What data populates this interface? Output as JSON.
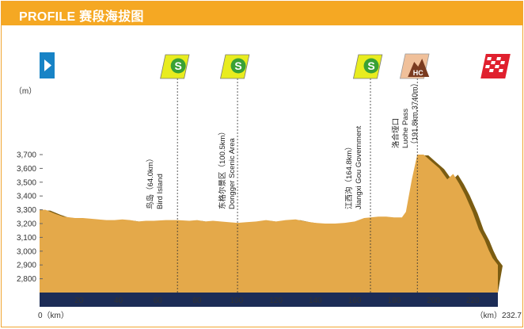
{
  "header": {
    "title": "PROFILE 赛段海拔图"
  },
  "chart_data": {
    "type": "area",
    "title": "PROFILE 赛段海拔图",
    "ylabel": "（m）",
    "x_start_label": "0（km）",
    "x_end_label": "（km）232.7",
    "xlim": [
      0,
      232.7
    ],
    "ylim": [
      2700,
      3800
    ],
    "x_ticks": [
      20,
      40,
      60,
      80,
      100,
      120,
      140,
      160,
      180,
      200,
      220
    ],
    "y_ticks": [
      2800,
      2900,
      3000,
      3100,
      3200,
      3300,
      3400,
      3500,
      3600,
      3700
    ],
    "y_tick_labels": [
      "2,800",
      "2,900",
      "3,000",
      "3,100",
      "3,200",
      "3,300",
      "3,400",
      "3,500",
      "3,600",
      "3,700"
    ],
    "colors": {
      "fill": "#e4a94a",
      "shadow": "#7a5c12",
      "sprint": "#e8ec1f",
      "start": "#1783c6",
      "hc": "#f0c09a",
      "finish": "#e0202e"
    },
    "x": [
      0,
      3,
      8,
      12,
      18,
      22,
      26,
      30,
      34,
      38,
      42,
      46,
      50,
      54,
      58,
      64,
      70,
      76,
      80,
      84,
      88,
      92,
      96,
      100.5,
      105,
      110,
      115,
      120,
      125,
      130,
      135,
      140,
      145,
      150,
      155,
      160,
      164.8,
      168,
      172,
      176,
      180,
      184,
      186,
      189,
      191.8,
      195,
      199,
      203,
      207,
      210,
      213,
      216,
      220,
      223,
      226,
      228,
      230,
      232.7
    ],
    "y": [
      3300,
      3300,
      3270,
      3250,
      3240,
      3240,
      3235,
      3230,
      3225,
      3225,
      3230,
      3225,
      3215,
      3220,
      3220,
      3225,
      3225,
      3220,
      3225,
      3215,
      3220,
      3215,
      3210,
      3205,
      3210,
      3215,
      3225,
      3215,
      3225,
      3230,
      3215,
      3205,
      3200,
      3200,
      3205,
      3215,
      3240,
      3245,
      3250,
      3250,
      3245,
      3245,
      3285,
      3520,
      3700,
      3700,
      3650,
      3600,
      3520,
      3560,
      3490,
      3410,
      3280,
      3160,
      3080,
      3010,
      2950,
      2900
    ],
    "sprints": [
      {
        "x": 70
      },
      {
        "x": 100.5
      },
      {
        "x": 168
      }
    ],
    "start": {
      "x": 0
    },
    "hc": {
      "x": 191.8,
      "label": "HC"
    },
    "finish": {
      "x": 232.7
    },
    "annotations": [
      {
        "x": 64.0,
        "cn": "鸟岛（64.0km）",
        "en": "Bird Island"
      },
      {
        "x": 100.5,
        "cn": "东格尔景区（100.5km）",
        "en": "Dongger Scenic Area"
      },
      {
        "x": 164.8,
        "cn": "江西沟（164.8km）",
        "en": "Jiangxi Gou Government"
      },
      {
        "x": 191.8,
        "cn": "洛合垭口",
        "en": "Luohe Pass",
        "extra": "（191.8km,3740m）"
      }
    ]
  }
}
